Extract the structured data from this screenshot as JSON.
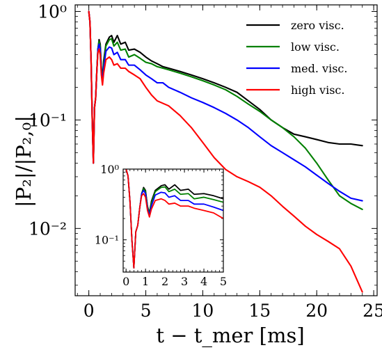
{
  "chart_data": {
    "type": "line",
    "yscale": "log",
    "xlabel": "t − t_mer [ms]",
    "ylabel": "|P₂|/|P₂,₀|",
    "xlim": [
      -1.2,
      25.3
    ],
    "ylim": [
      0.0024,
      1.15
    ],
    "xticks": [
      0,
      5,
      10,
      15,
      20,
      25
    ],
    "xtick_labels": [
      "0",
      "5",
      "10",
      "15",
      "20",
      "25"
    ],
    "yticks": [
      1,
      0.1,
      0.01
    ],
    "ytick_labels": [
      "10⁰",
      "10⁻¹",
      "10⁻²"
    ],
    "legend_position": "top-right",
    "series": [
      {
        "name": "zero visc.",
        "color": "#000000",
        "points": [
          [
            0,
            1.0
          ],
          [
            0.1,
            0.8
          ],
          [
            0.2,
            0.35
          ],
          [
            0.3,
            0.1
          ],
          [
            0.4,
            0.04
          ],
          [
            0.5,
            0.13
          ],
          [
            0.6,
            0.16
          ],
          [
            0.7,
            0.28
          ],
          [
            0.8,
            0.45
          ],
          [
            0.9,
            0.55
          ],
          [
            1.0,
            0.5
          ],
          [
            1.1,
            0.3
          ],
          [
            1.2,
            0.24
          ],
          [
            1.3,
            0.35
          ],
          [
            1.5,
            0.5
          ],
          [
            1.8,
            0.58
          ],
          [
            2.0,
            0.6
          ],
          [
            2.2,
            0.52
          ],
          [
            2.5,
            0.6
          ],
          [
            2.8,
            0.5
          ],
          [
            3.2,
            0.52
          ],
          [
            3.5,
            0.44
          ],
          [
            4.0,
            0.45
          ],
          [
            4.5,
            0.42
          ],
          [
            5.0,
            0.38
          ],
          [
            5.5,
            0.35
          ],
          [
            6.0,
            0.33
          ],
          [
            6.5,
            0.31
          ],
          [
            7.0,
            0.3
          ],
          [
            8.0,
            0.28
          ],
          [
            9.0,
            0.26
          ],
          [
            10.0,
            0.24
          ],
          [
            11.0,
            0.22
          ],
          [
            12.0,
            0.2
          ],
          [
            13.0,
            0.18
          ],
          [
            14.0,
            0.15
          ],
          [
            15.0,
            0.125
          ],
          [
            16.0,
            0.1
          ],
          [
            17.0,
            0.085
          ],
          [
            18.0,
            0.074
          ],
          [
            19.0,
            0.07
          ],
          [
            20.0,
            0.066
          ],
          [
            21.0,
            0.062
          ],
          [
            22.0,
            0.06
          ],
          [
            23.0,
            0.06
          ],
          [
            24.0,
            0.058
          ]
        ]
      },
      {
        "name": "low visc.",
        "color": "#008000",
        "points": [
          [
            0,
            1.0
          ],
          [
            0.1,
            0.8
          ],
          [
            0.2,
            0.35
          ],
          [
            0.3,
            0.1
          ],
          [
            0.4,
            0.04
          ],
          [
            0.5,
            0.13
          ],
          [
            0.6,
            0.16
          ],
          [
            0.7,
            0.28
          ],
          [
            0.8,
            0.45
          ],
          [
            0.9,
            0.53
          ],
          [
            1.0,
            0.48
          ],
          [
            1.1,
            0.3
          ],
          [
            1.2,
            0.23
          ],
          [
            1.3,
            0.33
          ],
          [
            1.5,
            0.48
          ],
          [
            1.8,
            0.55
          ],
          [
            2.0,
            0.56
          ],
          [
            2.2,
            0.48
          ],
          [
            2.5,
            0.52
          ],
          [
            2.8,
            0.44
          ],
          [
            3.2,
            0.45
          ],
          [
            3.5,
            0.38
          ],
          [
            4.0,
            0.4
          ],
          [
            4.5,
            0.37
          ],
          [
            5.0,
            0.34
          ],
          [
            5.5,
            0.33
          ],
          [
            6.0,
            0.31
          ],
          [
            6.5,
            0.3
          ],
          [
            7.0,
            0.29
          ],
          [
            8.0,
            0.27
          ],
          [
            9.0,
            0.25
          ],
          [
            10.0,
            0.23
          ],
          [
            11.0,
            0.21
          ],
          [
            12.0,
            0.19
          ],
          [
            13.0,
            0.165
          ],
          [
            14.0,
            0.14
          ],
          [
            15.0,
            0.12
          ],
          [
            16.0,
            0.1
          ],
          [
            17.0,
            0.085
          ],
          [
            18.0,
            0.07
          ],
          [
            19.0,
            0.055
          ],
          [
            20.0,
            0.04
          ],
          [
            21.0,
            0.028
          ],
          [
            22.0,
            0.02
          ],
          [
            23.0,
            0.017
          ],
          [
            24.0,
            0.015
          ]
        ]
      },
      {
        "name": "med. visc.",
        "color": "#0000ff",
        "points": [
          [
            0,
            1.0
          ],
          [
            0.1,
            0.8
          ],
          [
            0.2,
            0.35
          ],
          [
            0.3,
            0.1
          ],
          [
            0.4,
            0.04
          ],
          [
            0.5,
            0.13
          ],
          [
            0.6,
            0.16
          ],
          [
            0.7,
            0.28
          ],
          [
            0.8,
            0.45
          ],
          [
            0.9,
            0.5
          ],
          [
            1.0,
            0.45
          ],
          [
            1.1,
            0.28
          ],
          [
            1.2,
            0.22
          ],
          [
            1.3,
            0.3
          ],
          [
            1.5,
            0.43
          ],
          [
            1.8,
            0.47
          ],
          [
            2.0,
            0.46
          ],
          [
            2.2,
            0.4
          ],
          [
            2.5,
            0.42
          ],
          [
            2.8,
            0.36
          ],
          [
            3.2,
            0.36
          ],
          [
            3.5,
            0.32
          ],
          [
            4.0,
            0.32
          ],
          [
            4.5,
            0.29
          ],
          [
            5.0,
            0.26
          ],
          [
            5.5,
            0.24
          ],
          [
            6.0,
            0.22
          ],
          [
            6.5,
            0.22
          ],
          [
            7.0,
            0.2
          ],
          [
            8.0,
            0.18
          ],
          [
            9.0,
            0.16
          ],
          [
            10.0,
            0.145
          ],
          [
            11.0,
            0.13
          ],
          [
            12.0,
            0.115
          ],
          [
            13.0,
            0.1
          ],
          [
            14.0,
            0.085
          ],
          [
            15.0,
            0.07
          ],
          [
            16.0,
            0.058
          ],
          [
            17.0,
            0.05
          ],
          [
            18.0,
            0.043
          ],
          [
            19.0,
            0.037
          ],
          [
            20.0,
            0.031
          ],
          [
            21.0,
            0.026
          ],
          [
            22.0,
            0.022
          ],
          [
            23.0,
            0.019
          ],
          [
            24.0,
            0.018
          ]
        ]
      },
      {
        "name": "high visc.",
        "color": "#ff0000",
        "points": [
          [
            0,
            1.0
          ],
          [
            0.1,
            0.8
          ],
          [
            0.2,
            0.35
          ],
          [
            0.3,
            0.1
          ],
          [
            0.4,
            0.04
          ],
          [
            0.5,
            0.13
          ],
          [
            0.6,
            0.16
          ],
          [
            0.7,
            0.28
          ],
          [
            0.8,
            0.42
          ],
          [
            0.9,
            0.45
          ],
          [
            1.0,
            0.4
          ],
          [
            1.1,
            0.26
          ],
          [
            1.2,
            0.21
          ],
          [
            1.3,
            0.27
          ],
          [
            1.5,
            0.36
          ],
          [
            1.8,
            0.38
          ],
          [
            2.0,
            0.36
          ],
          [
            2.2,
            0.32
          ],
          [
            2.5,
            0.33
          ],
          [
            2.8,
            0.3
          ],
          [
            3.2,
            0.3
          ],
          [
            3.5,
            0.28
          ],
          [
            4.0,
            0.26
          ],
          [
            4.5,
            0.24
          ],
          [
            5.0,
            0.2
          ],
          [
            5.5,
            0.17
          ],
          [
            6.0,
            0.15
          ],
          [
            7.0,
            0.135
          ],
          [
            8.0,
            0.11
          ],
          [
            9.0,
            0.085
          ],
          [
            10.0,
            0.062
          ],
          [
            11.0,
            0.045
          ],
          [
            12.0,
            0.035
          ],
          [
            13.0,
            0.03
          ],
          [
            14.0,
            0.027
          ],
          [
            15.0,
            0.024
          ],
          [
            16.0,
            0.02
          ],
          [
            17.0,
            0.016
          ],
          [
            18.0,
            0.013
          ],
          [
            19.0,
            0.0105
          ],
          [
            20.0,
            0.0088
          ],
          [
            21.0,
            0.0076
          ],
          [
            22.0,
            0.0065
          ],
          [
            23.0,
            0.0045
          ],
          [
            24.0,
            0.0026
          ]
        ]
      }
    ],
    "inset": {
      "xlim": [
        -0.15,
        5.0
      ],
      "ylim": [
        0.035,
        1.0
      ],
      "xticks": [
        0,
        1,
        2,
        3,
        4,
        5
      ],
      "xtick_labels": [
        "0",
        "1",
        "2",
        "3",
        "4",
        "5"
      ],
      "yticks": [
        1,
        0.1
      ],
      "ytick_labels": [
        "10⁰",
        "10⁻¹"
      ]
    }
  }
}
